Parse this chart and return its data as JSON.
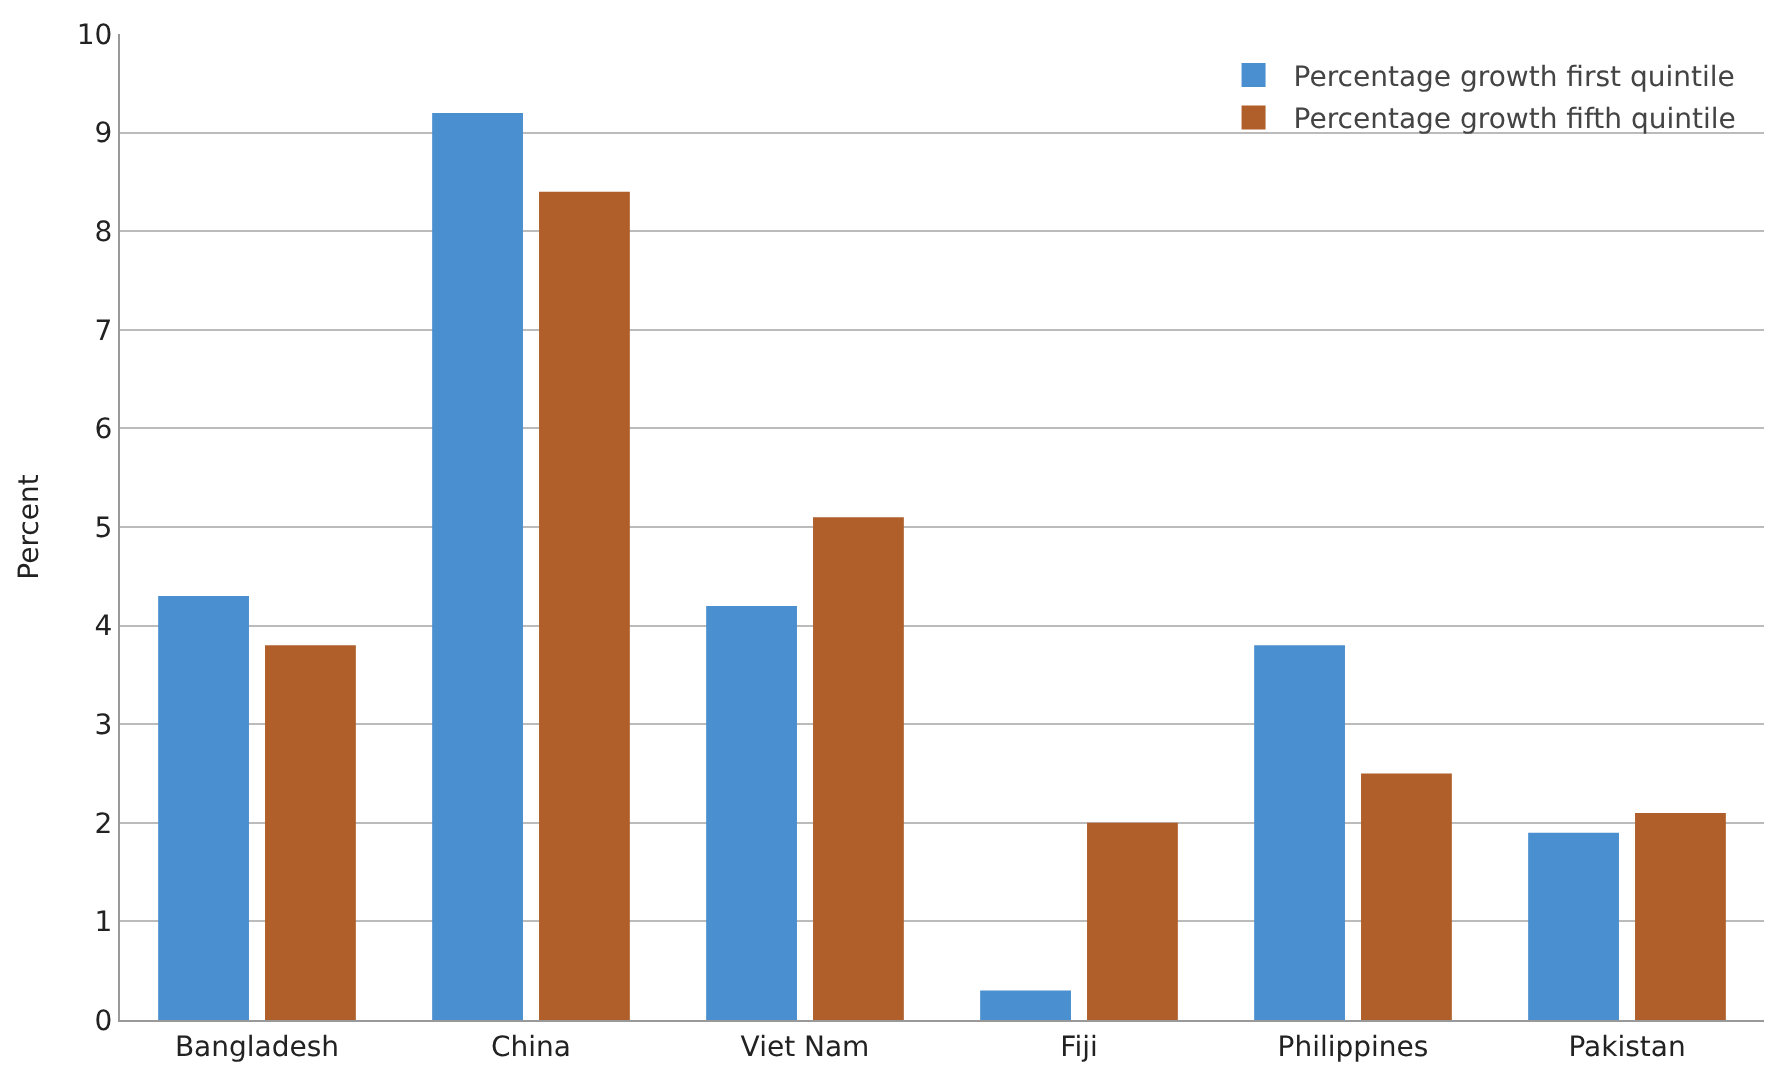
{
  "chart_data": {
    "type": "bar",
    "ylabel": "Percent",
    "categories": [
      "Bangladesh",
      "China",
      "Viet Nam",
      "Fiji",
      "Philippines",
      "Pakistan"
    ],
    "series": [
      {
        "name": "Percentage growth first quintile",
        "color": "#4a8fcf",
        "values": [
          4.3,
          9.2,
          4.2,
          0.3,
          3.8,
          1.9
        ]
      },
      {
        "name": "Percentage growth fifth quintile",
        "color": "#b05f2b",
        "values": [
          3.8,
          8.4,
          5.1,
          2.0,
          2.5,
          2.1
        ]
      }
    ],
    "ylim": [
      0,
      10
    ],
    "yticks": [
      0,
      1,
      2,
      3,
      4,
      5,
      6,
      7,
      8,
      9,
      10
    ],
    "grid": "y",
    "legend": "top right"
  }
}
